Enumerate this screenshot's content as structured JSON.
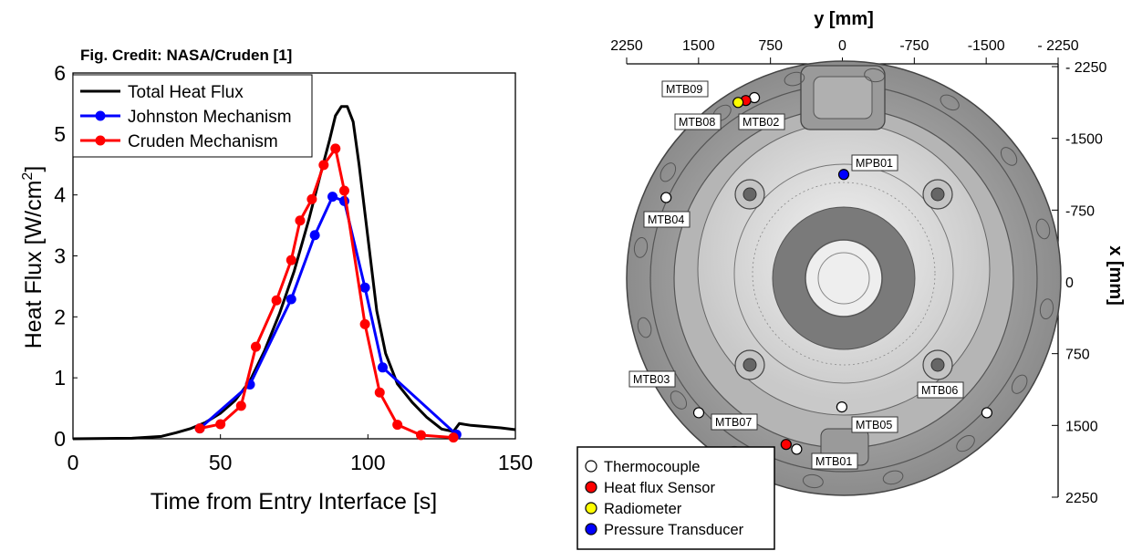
{
  "chart_data": [
    {
      "type": "line",
      "credit": "Fig. Credit: NASA/Cruden [1]",
      "xlabel": "Time from Entry Interface [s]",
      "ylabel": "Heat Flux [W/cm",
      "ylabel_sup": "2",
      "ylabel_end": "]",
      "xlim": [
        0,
        150
      ],
      "ylim": [
        0,
        6
      ],
      "xticks": [
        0,
        50,
        100,
        150
      ],
      "yticks": [
        0,
        1,
        2,
        3,
        4,
        5,
        6
      ],
      "grid": false,
      "legend_position": "top-left",
      "series": [
        {
          "name": "Total Heat Flux",
          "color": "#000000",
          "marker": false,
          "x": [
            0,
            20,
            30,
            35,
            40,
            45,
            50,
            55,
            60,
            65,
            70,
            75,
            80,
            84,
            87,
            89,
            91,
            93,
            95,
            97,
            100,
            103,
            106,
            110,
            115,
            120,
            125,
            129,
            131,
            135,
            140,
            145,
            150
          ],
          "y": [
            0,
            0.01,
            0.04,
            0.1,
            0.17,
            0.27,
            0.42,
            0.63,
            0.95,
            1.45,
            2.05,
            2.75,
            3.6,
            4.35,
            4.9,
            5.3,
            5.45,
            5.45,
            5.2,
            4.5,
            3.3,
            2.1,
            1.4,
            0.9,
            0.6,
            0.35,
            0.16,
            0.12,
            0.25,
            0.22,
            0.2,
            0.18,
            0.15
          ]
        },
        {
          "name": "Johnston Mechanism",
          "color": "#0000ff",
          "marker": true,
          "x": [
            43,
            60,
            74,
            82,
            88,
            92,
            99,
            105,
            130
          ],
          "y": [
            0.17,
            0.89,
            2.29,
            3.34,
            3.97,
            3.9,
            2.48,
            1.17,
            0.07
          ]
        },
        {
          "name": "Cruden Mechanism",
          "color": "#ff0000",
          "marker": true,
          "x": [
            43,
            50,
            57,
            62,
            69,
            74,
            77,
            81,
            85,
            89,
            92,
            99,
            104,
            110,
            118,
            129
          ],
          "y": [
            0.17,
            0.24,
            0.54,
            1.51,
            2.27,
            2.93,
            3.58,
            3.93,
            4.49,
            4.76,
            4.07,
            1.88,
            0.76,
            0.23,
            0.06,
            0.02
          ]
        }
      ]
    },
    {
      "type": "scatter",
      "x_axis_title": "y [mm]",
      "y_axis_title": "x [mm]",
      "xlim": [
        2250,
        -2250
      ],
      "ylim": [
        -2250,
        2250
      ],
      "xtick_labels": [
        "2250",
        "1500",
        "750",
        "0",
        "-750",
        "-1500",
        "- 2250"
      ],
      "ytick_labels": [
        "- 2250",
        "-1500",
        "-750",
        "0",
        "750",
        "1500",
        "2250"
      ],
      "legend_position": "bottom-left",
      "legend": [
        {
          "label": "Thermocouple",
          "color": "#ffffff"
        },
        {
          "label": "Heat flux Sensor",
          "color": "#ff0000"
        },
        {
          "label": "Radiometer",
          "color": "#ffff00"
        },
        {
          "label": "Pressure Transducer",
          "color": "#0000ff"
        }
      ],
      "sensors": [
        {
          "label": "MTB09",
          "kind": "Thermocouple",
          "y_mm": 930,
          "x_mm": -1880
        },
        {
          "label": "MTB02",
          "kind": "Heat flux Sensor",
          "y_mm": 1020,
          "x_mm": -1850
        },
        {
          "label": "MTB08",
          "kind": "Radiometer",
          "y_mm": 1100,
          "x_mm": -1830
        },
        {
          "label": "MPB01",
          "kind": "Pressure Transducer",
          "y_mm": 0,
          "x_mm": -1080
        },
        {
          "label": "MTB04",
          "kind": "Thermocouple",
          "y_mm": 1850,
          "x_mm": -840
        },
        {
          "label": "MTB03",
          "kind": "Thermocouple",
          "y_mm": 1510,
          "x_mm": 1400
        },
        {
          "label": "MTB07",
          "kind": "Heat flux Sensor",
          "y_mm": 600,
          "x_mm": 1730
        },
        {
          "label": "MTB01",
          "kind": "Thermocouple",
          "y_mm": 490,
          "x_mm": 1780
        },
        {
          "label": "MTB05",
          "kind": "Thermocouple",
          "y_mm": 20,
          "x_mm": 1340
        },
        {
          "label": "MTB06",
          "kind": "Thermocouple",
          "y_mm": -1490,
          "x_mm": 1400
        }
      ]
    }
  ]
}
